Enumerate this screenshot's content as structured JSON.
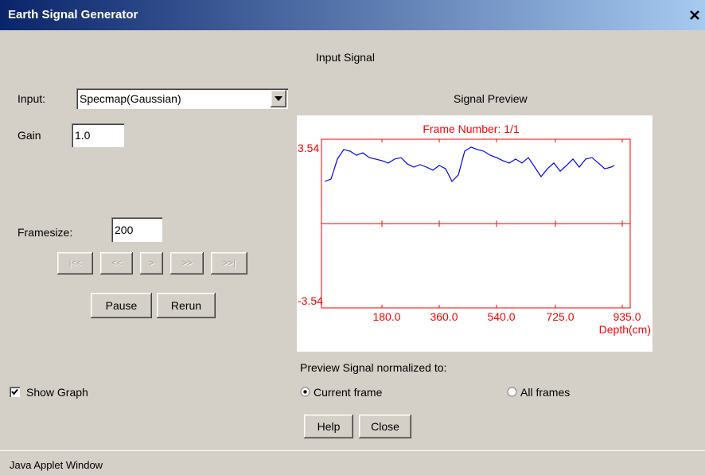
{
  "window": {
    "title": "Earth Signal Generator"
  },
  "section_title": "Input Signal",
  "input": {
    "label": "Input:",
    "value": "Specmap(Gaussian)"
  },
  "gain": {
    "label": "Gain",
    "value": "1.0"
  },
  "framesize": {
    "label": "Framesize:",
    "value": "200"
  },
  "nav_buttons": [
    "|<<",
    "<<",
    ">",
    ">>",
    ">>|"
  ],
  "buttons": [
    "Pause",
    "Rerun"
  ],
  "preview_label": "Signal Preview",
  "chart_data": {
    "type": "line",
    "title": "Frame Number: 1/1",
    "xlabel": "Depth(cm)",
    "x": [
      0,
      20,
      40,
      60,
      80,
      100,
      120,
      140,
      160,
      180,
      200,
      220,
      240,
      260,
      280,
      300,
      320,
      340,
      360,
      380,
      400,
      420,
      440,
      460,
      480,
      500,
      520,
      540,
      560,
      580,
      600,
      620,
      640,
      660,
      680,
      700,
      720,
      740,
      760,
      780,
      800,
      820,
      840,
      860,
      880,
      900,
      910
    ],
    "series": [
      {
        "color": "#0000ff",
        "values": [
          1.77,
          1.87,
          2.71,
          3.11,
          3.04,
          2.87,
          2.97,
          2.77,
          2.71,
          2.64,
          2.54,
          2.71,
          2.77,
          2.5,
          2.37,
          2.47,
          2.37,
          2.24,
          2.44,
          2.3,
          1.77,
          2.04,
          3.04,
          3.21,
          3.11,
          3.04,
          2.87,
          2.77,
          2.64,
          2.54,
          2.71,
          2.54,
          2.77,
          2.37,
          1.97,
          2.3,
          2.54,
          2.2,
          2.44,
          2.71,
          2.37,
          2.71,
          2.77,
          2.54,
          2.3,
          2.37,
          2.44
        ]
      }
    ],
    "xlim": [
      -10,
      960
    ],
    "ylim": [
      -3.54,
      3.54
    ],
    "xticks": [
      {
        "value": 180,
        "label": "180.0"
      },
      {
        "value": 360,
        "label": "360.0"
      },
      {
        "value": 540,
        "label": "540.0"
      },
      {
        "value": 725,
        "label": "725.0"
      },
      {
        "value": 935,
        "label": "935.0"
      }
    ],
    "yticks": [
      3.54,
      -3.54
    ],
    "axis_color": "#ff0000"
  },
  "normalize": {
    "label": "Preview Signal normalized to:",
    "options": [
      "Current frame",
      "All frames"
    ],
    "selected": 0
  },
  "show_graph": {
    "label": "Show Graph",
    "checked": true
  },
  "footer_buttons": [
    "Help",
    "Close"
  ],
  "status": "Java Applet Window"
}
